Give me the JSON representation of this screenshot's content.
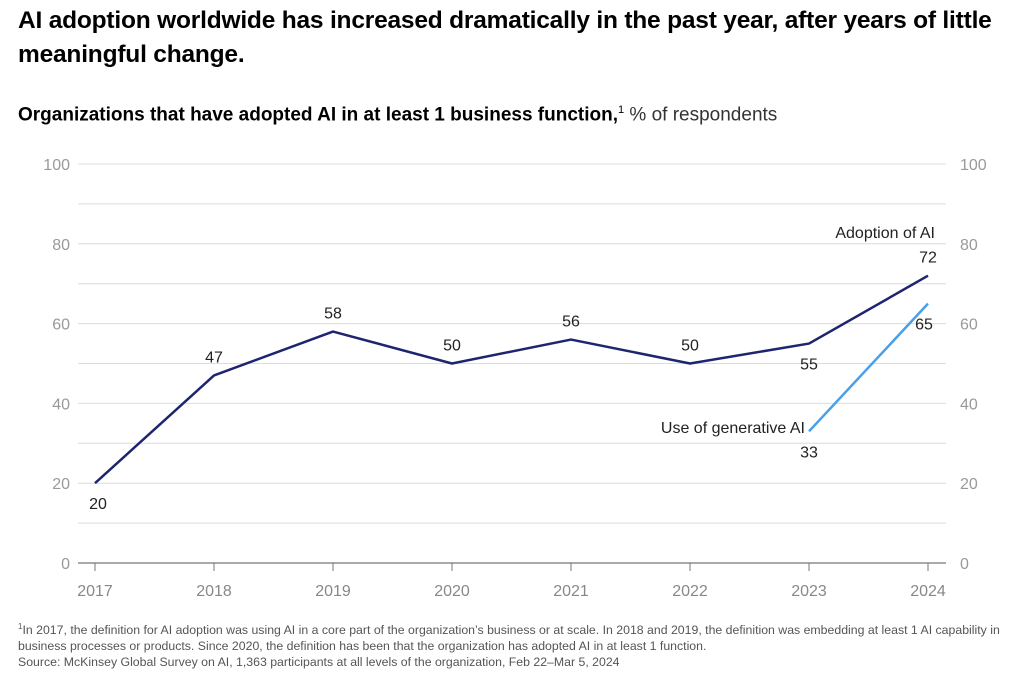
{
  "headline": "AI adoption worldwide has increased dramatically in the past year, after years of little meaningful change.",
  "subtitle": {
    "title": "Organizations that have adopted AI in at least 1 business function,",
    "footnote_marker": "1",
    "unit": " % of respondents"
  },
  "footnote": {
    "marker": "1",
    "text": "In 2017, the definition for AI adoption was using AI in a core part of the organization’s business or at scale. In 2018 and 2019, the definition was embedding at least 1 AI capability in business processes or products. Since 2020, the definition has been that the organization has adopted AI in at least 1 function.",
    "source": "Source: McKinsey Global Survey on AI, 1,363 participants at all levels of the organization, Feb 22–Mar 5, 2024"
  },
  "chart_data": {
    "type": "line",
    "x": [
      "2017",
      "2018",
      "2019",
      "2020",
      "2021",
      "2022",
      "2023",
      "2024"
    ],
    "ylim": [
      0,
      100
    ],
    "yticks": [
      0,
      20,
      40,
      60,
      80,
      100
    ],
    "grid": true,
    "y_axis_both_sides": true,
    "series": [
      {
        "name": "Adoption of AI",
        "color": "#1f2470",
        "values": [
          20,
          47,
          58,
          50,
          56,
          50,
          55,
          72
        ]
      },
      {
        "name": "Use of generative AI",
        "color": "#4a9fe8",
        "values": [
          null,
          null,
          null,
          null,
          null,
          null,
          33,
          65
        ]
      }
    ]
  }
}
